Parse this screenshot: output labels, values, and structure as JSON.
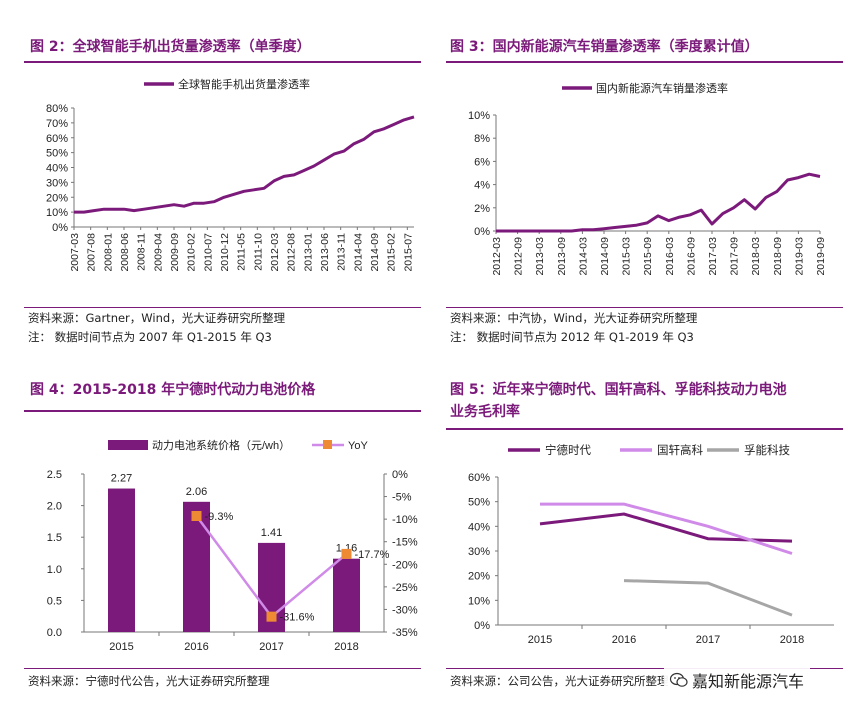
{
  "colors": {
    "accent": "#7b1a7a",
    "series_purple": "#7b1a7a",
    "series_lavender": "#d08ae8",
    "series_gray": "#a6a6a6",
    "marker_orange": "#ef8a34"
  },
  "fig2": {
    "title": "图 2：全球智能手机出货量渗透率（单季度）",
    "source": "资料来源：Gartner，Wind，光大证券研究所整理",
    "note": "注：  数据时间节点为 2007 年 Q1-2015 年 Q3"
  },
  "fig3": {
    "title": "图 3：国内新能源汽车销量渗透率（季度累计值）",
    "source": "资料来源：中汽协，Wind，光大证券研究所整理",
    "note": "注：  数据时间节点为 2012 年 Q1-2019 年 Q3"
  },
  "fig4": {
    "title": "图 4：2015-2018 年宁德时代动力电池价格",
    "source": "资料来源：宁德时代公告，光大证券研究所整理"
  },
  "fig5": {
    "title_line1": "图 5：近年来宁德时代、国轩高科、孚能科技动力电池",
    "title_line2": "业务毛利率",
    "source": "资料来源：公司公告，光大证券研究所整理"
  },
  "watermark": "嘉知新能源汽车",
  "chart_data": [
    {
      "id": "fig2",
      "type": "line",
      "legend_position": "top",
      "grid": false,
      "x_tick_labels": [
        "2007-03",
        "2007-08",
        "2008-01",
        "2008-06",
        "2008-11",
        "2009-04",
        "2009-09",
        "2010-02",
        "2010-07",
        "2010-12",
        "2011-05",
        "2011-10",
        "2012-03",
        "2012-08",
        "2013-01",
        "2013-06",
        "2013-11",
        "2014-04",
        "2014-09",
        "2015-02",
        "2015-07"
      ],
      "y_tick_labels": [
        "0%",
        "10%",
        "20%",
        "30%",
        "40%",
        "50%",
        "60%",
        "70%",
        "80%"
      ],
      "ylim": [
        0,
        0.8
      ],
      "series": [
        {
          "name": "全球智能手机出货量渗透率",
          "x": [
            "2007Q1",
            "2007Q2",
            "2007Q3",
            "2007Q4",
            "2008Q1",
            "2008Q2",
            "2008Q3",
            "2008Q4",
            "2009Q1",
            "2009Q2",
            "2009Q3",
            "2009Q4",
            "2010Q1",
            "2010Q2",
            "2010Q3",
            "2010Q4",
            "2011Q1",
            "2011Q2",
            "2011Q3",
            "2011Q4",
            "2012Q1",
            "2012Q2",
            "2012Q3",
            "2012Q4",
            "2013Q1",
            "2013Q2",
            "2013Q3",
            "2013Q4",
            "2014Q1",
            "2014Q2",
            "2014Q3",
            "2014Q4",
            "2015Q1",
            "2015Q2",
            "2015Q3"
          ],
          "values": [
            0.1,
            0.1,
            0.11,
            0.12,
            0.12,
            0.12,
            0.11,
            0.12,
            0.13,
            0.14,
            0.15,
            0.14,
            0.16,
            0.16,
            0.17,
            0.2,
            0.22,
            0.24,
            0.25,
            0.26,
            0.31,
            0.34,
            0.35,
            0.38,
            0.41,
            0.45,
            0.49,
            0.51,
            0.56,
            0.59,
            0.64,
            0.66,
            0.69,
            0.72,
            0.74
          ]
        }
      ]
    },
    {
      "id": "fig3",
      "type": "line",
      "legend_position": "top",
      "grid": false,
      "x_tick_labels": [
        "2012-03",
        "2012-09",
        "2013-03",
        "2013-09",
        "2014-03",
        "2014-09",
        "2015-03",
        "2015-09",
        "2016-03",
        "2016-09",
        "2017-03",
        "2017-09",
        "2018-03",
        "2018-09",
        "2019-03",
        "2019-09"
      ],
      "y_tick_labels": [
        "0%",
        "2%",
        "4%",
        "6%",
        "8%",
        "10%"
      ],
      "ylim": [
        0,
        0.1
      ],
      "series": [
        {
          "name": "国内新能源汽车销量渗透率",
          "x": [
            "2012Q1",
            "2012Q2",
            "2012Q3",
            "2012Q4",
            "2013Q1",
            "2013Q2",
            "2013Q3",
            "2013Q4",
            "2014Q1",
            "2014Q2",
            "2014Q3",
            "2014Q4",
            "2015Q1",
            "2015Q2",
            "2015Q3",
            "2015Q4",
            "2016Q1",
            "2016Q2",
            "2016Q3",
            "2016Q4",
            "2017Q1",
            "2017Q2",
            "2017Q3",
            "2017Q4",
            "2018Q1",
            "2018Q2",
            "2018Q3",
            "2018Q4",
            "2019Q1",
            "2019Q2",
            "2019Q3"
          ],
          "values": [
            0.0,
            0.0,
            0.0,
            0.0,
            0.0,
            0.0,
            0.0,
            0.0,
            0.001,
            0.001,
            0.002,
            0.003,
            0.004,
            0.005,
            0.007,
            0.013,
            0.009,
            0.012,
            0.014,
            0.018,
            0.006,
            0.015,
            0.02,
            0.027,
            0.019,
            0.029,
            0.034,
            0.044,
            0.046,
            0.049,
            0.047
          ]
        }
      ]
    },
    {
      "id": "fig4",
      "type": "bar",
      "legend_position": "top",
      "grid": false,
      "categories": [
        "2015",
        "2016",
        "2017",
        "2018"
      ],
      "y_tick_labels": [
        "0.0",
        "0.5",
        "1.0",
        "1.5",
        "2.0",
        "2.5"
      ],
      "ylim": [
        0,
        2.5
      ],
      "y2_tick_labels": [
        "0%",
        "-5%",
        "-10%",
        "-15%",
        "-20%",
        "-25%",
        "-30%",
        "-35%"
      ],
      "y2lim": [
        -0.35,
        0
      ],
      "series": [
        {
          "name": "动力电池系统价格（元/wh）",
          "type": "bar",
          "axis": "left",
          "values": [
            2.27,
            2.06,
            1.41,
            1.16
          ],
          "data_labels": [
            "2.27",
            "2.06",
            "1.41",
            "1.16"
          ]
        },
        {
          "name": "YoY",
          "type": "line",
          "axis": "right",
          "values": [
            null,
            -0.093,
            -0.316,
            -0.177
          ],
          "data_labels": [
            "",
            "-9.3%",
            "-31.6%",
            "-17.7%"
          ]
        }
      ]
    },
    {
      "id": "fig5",
      "type": "line",
      "legend_position": "top",
      "grid": false,
      "categories": [
        "2015",
        "2016",
        "2017",
        "2018"
      ],
      "y_tick_labels": [
        "0%",
        "10%",
        "20%",
        "30%",
        "40%",
        "50%",
        "60%"
      ],
      "ylim": [
        0,
        0.6
      ],
      "series": [
        {
          "name": "宁德时代",
          "values": [
            0.41,
            0.45,
            0.35,
            0.34
          ]
        },
        {
          "name": "国轩高科",
          "values": [
            0.49,
            0.49,
            0.4,
            0.29
          ]
        },
        {
          "name": "孚能科技",
          "values": [
            null,
            0.18,
            0.17,
            0.04
          ]
        }
      ]
    }
  ]
}
